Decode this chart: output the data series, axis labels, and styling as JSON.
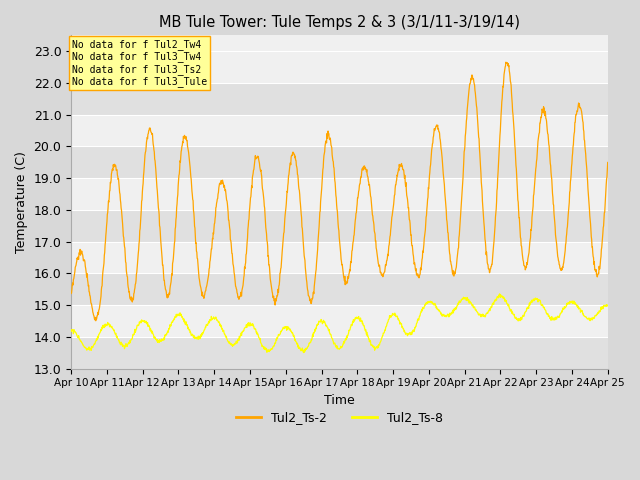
{
  "title": "MB Tule Tower: Tule Temps 2 & 3 (3/1/11-3/19/14)",
  "xlabel": "Time",
  "ylabel": "Temperature (C)",
  "ylim": [
    13.0,
    23.5
  ],
  "yticks": [
    13.0,
    14.0,
    15.0,
    16.0,
    17.0,
    18.0,
    19.0,
    20.0,
    21.0,
    22.0,
    23.0
  ],
  "plot_bg_light": "#f0f0f0",
  "plot_bg_dark": "#e0e0e0",
  "figure_bg": "#d8d8d8",
  "grid_color": "#ffffff",
  "color_ts2": "#FFA500",
  "color_ts8": "#FFFF00",
  "legend_labels": [
    "Tul2_Ts-2",
    "Tul2_Ts-8"
  ],
  "no_data_text": [
    "No data for f Tul2_Tw4",
    "No data for f Tul3_Tw4",
    "No data for f Tul3_Ts2",
    "No data for f Tul3_Tule"
  ],
  "no_data_box_color": "#FFFF99",
  "no_data_box_edge": "#FFA500",
  "x_labels": [
    "Apr 10",
    "Apr 11",
    "Apr 12",
    "Apr 13",
    "Apr 14",
    "Apr 15",
    "Apr 16",
    "Apr 17",
    "Apr 18",
    "Apr 19",
    "Apr 20",
    "Apr 21",
    "Apr 22",
    "Apr 23",
    "Apr 24",
    "Apr 25"
  ],
  "ts2_peaks": [
    15.9,
    19.1,
    20.5,
    20.7,
    18.7,
    19.7,
    19.6,
    20.6,
    19.4,
    19.2,
    20.3,
    22.0,
    23.0,
    21.1,
    21.3,
    21.3,
    21.2,
    20.1,
    20.3,
    21.3,
    16.3,
    21.3,
    21.5,
    21.5,
    16.8
  ],
  "ts2_lows": [
    14.1,
    14.8,
    15.3,
    15.3,
    15.3,
    15.2,
    15.1,
    15.1,
    16.0,
    15.9,
    15.9,
    16.0,
    16.1,
    16.2,
    16.1,
    15.9,
    16.0,
    16.2,
    16.1,
    16.3,
    16.3,
    15.2,
    15.3,
    15.2,
    16.8
  ],
  "ts8_peaks": [
    14.2,
    14.4,
    14.5,
    14.7,
    14.6,
    14.4,
    14.3,
    14.5,
    14.6,
    14.7,
    15.1,
    15.2,
    15.3,
    15.2,
    15.1,
    15.0,
    15.1,
    15.0,
    14.9,
    14.8,
    14.7,
    14.6,
    14.5,
    14.3,
    14.2
  ],
  "ts8_lows": [
    13.5,
    13.7,
    13.7,
    14.0,
    13.9,
    13.6,
    13.5,
    13.6,
    13.7,
    13.6,
    14.6,
    14.7,
    14.6,
    14.5,
    14.6,
    14.5,
    14.4,
    14.4,
    14.4,
    14.3,
    14.3,
    13.6,
    13.5,
    13.5,
    13.6
  ]
}
